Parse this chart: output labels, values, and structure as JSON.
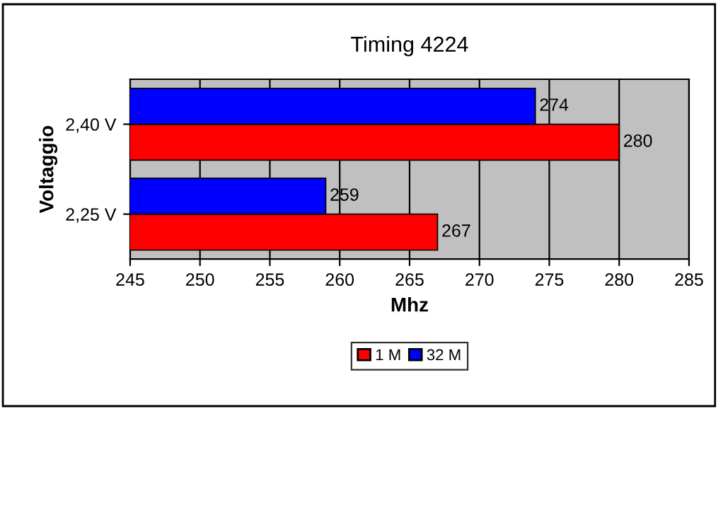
{
  "chart_data": {
    "type": "bar",
    "orientation": "horizontal",
    "title": "Timing 4224",
    "xlabel": "Mhz",
    "ylabel": "Voltaggio",
    "categories": [
      "2,40 V",
      "2,25 V"
    ],
    "series": [
      {
        "name": "1 M",
        "color": "#ff0000",
        "values": [
          280,
          267
        ]
      },
      {
        "name": "32 M",
        "color": "#0000ff",
        "values": [
          274,
          259
        ]
      }
    ],
    "xlim": [
      245,
      285
    ],
    "xticks": [
      245,
      250,
      255,
      260,
      265,
      270,
      275,
      280,
      285
    ],
    "grid": "x",
    "legend": "bottom",
    "data_labels": true
  }
}
